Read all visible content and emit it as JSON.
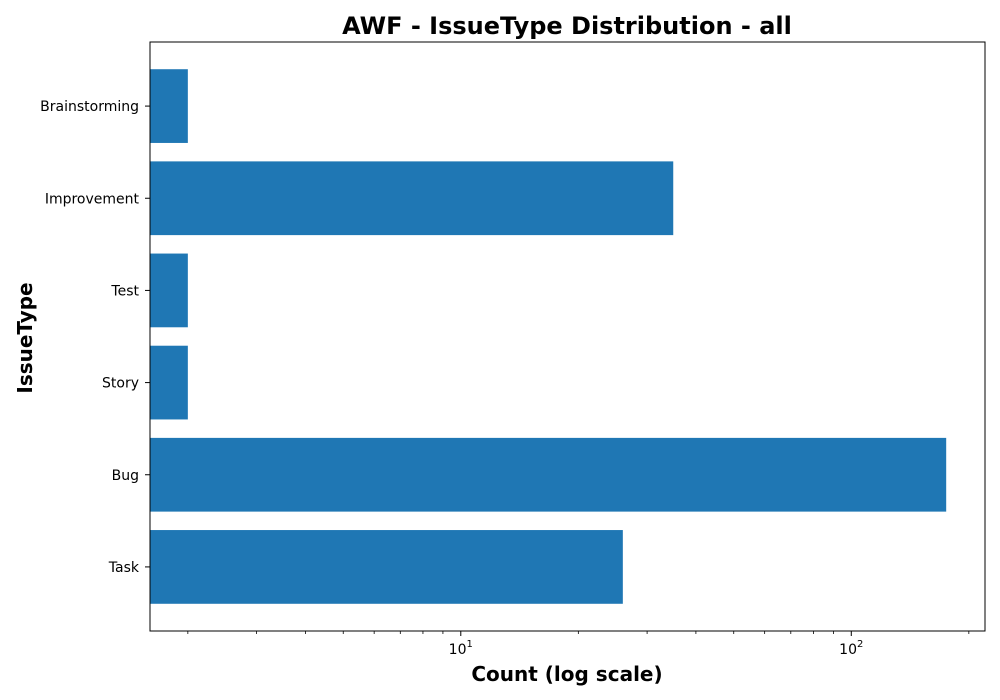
{
  "chart_data": {
    "type": "bar",
    "orientation": "horizontal",
    "title": "AWF - IssueType Distribution - all",
    "xlabel": "Count (log scale)",
    "ylabel": "IssueType",
    "xscale": "log",
    "xlim": [
      1.6,
      220
    ],
    "categories": [
      "Brainstorming",
      "Improvement",
      "Test",
      "Story",
      "Bug",
      "Task"
    ],
    "values": [
      2,
      35,
      2,
      2,
      175,
      26
    ],
    "x_major_ticks": [
      {
        "value": 10,
        "base": "10",
        "exp": "1"
      },
      {
        "value": 100,
        "base": "10",
        "exp": "2"
      }
    ],
    "bar_color": "#1f77b4",
    "grid": false,
    "legend": "none"
  }
}
